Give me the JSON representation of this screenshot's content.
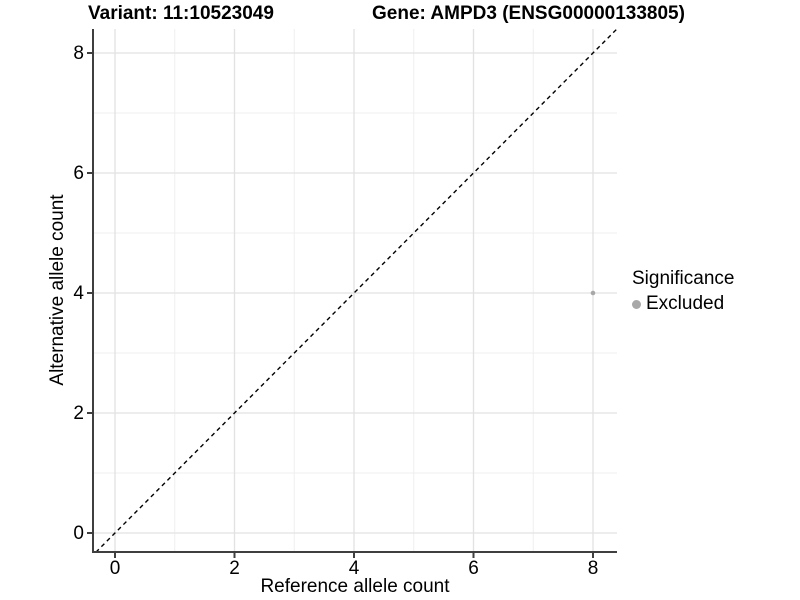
{
  "figure": {
    "variant_title": "Variant: 11:10523049",
    "gene_title": "Gene: AMPD3 (ENSG00000133805)"
  },
  "chart_data": {
    "type": "scatter",
    "xlabel": "Reference allele count",
    "ylabel": "Alternative allele count",
    "xlim": [
      -0.37,
      8.4
    ],
    "ylim": [
      -0.32,
      8.4
    ],
    "x_ticks": [
      0,
      2,
      4,
      6,
      8
    ],
    "y_ticks": [
      0,
      2,
      4,
      6,
      8
    ],
    "x_minor_ticks": [
      1,
      3,
      5,
      7
    ],
    "y_minor_ticks": [
      1,
      3,
      5,
      7
    ],
    "grid": "major and minor gridlines on white panel",
    "reference_line": {
      "type": "identity",
      "equation": "y = x",
      "style": "dashed"
    },
    "series": [
      {
        "name": "Excluded",
        "color": "#a8a8a8",
        "points": [
          {
            "x": 8,
            "y": 4
          }
        ]
      }
    ],
    "legend": {
      "title": "Significance",
      "position": "right",
      "items": [
        {
          "label": "Excluded",
          "color": "#a8a8a8"
        }
      ]
    }
  },
  "colors": {
    "background": "#ffffff",
    "grid_major": "#e2e2e2",
    "grid_minor": "#efefef",
    "axis_line": "#3f3f3f",
    "tick_mark": "#3f3f3f",
    "text": "#000000",
    "identity_line": "#000000",
    "point": "#a8a8a8"
  }
}
